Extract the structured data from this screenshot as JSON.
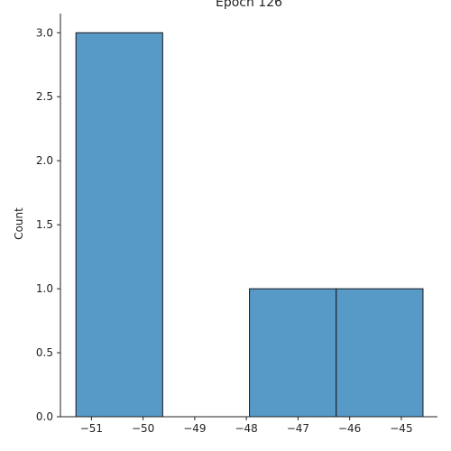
{
  "chart_data": {
    "type": "bar",
    "title": "Epoch 126",
    "xlabel": "",
    "ylabel": "Count",
    "bins": [
      {
        "x0": -51.3,
        "x1": -49.62,
        "count": 3
      },
      {
        "x0": -49.62,
        "x1": -47.94,
        "count": 0
      },
      {
        "x0": -47.94,
        "x1": -46.26,
        "count": 1
      },
      {
        "x0": -46.26,
        "x1": -44.58,
        "count": 1
      }
    ],
    "xlim": [
      -51.6,
      -44.3
    ],
    "ylim": [
      0,
      3.15
    ],
    "xticks": [
      -51,
      -50,
      -49,
      -48,
      -47,
      -46,
      -45
    ],
    "xtick_labels": [
      "−51",
      "−50",
      "−49",
      "−48",
      "−47",
      "−46",
      "−45"
    ],
    "yticks": [
      0,
      0.5,
      1,
      1.5,
      2,
      2.5,
      3
    ],
    "ytick_labels": [
      "0.0",
      "0.5",
      "1.0",
      "1.5",
      "2.0",
      "2.5",
      "3.0"
    ],
    "grid": false,
    "bar_color": "#5799c7",
    "edge_color": "#1a1a1a"
  }
}
